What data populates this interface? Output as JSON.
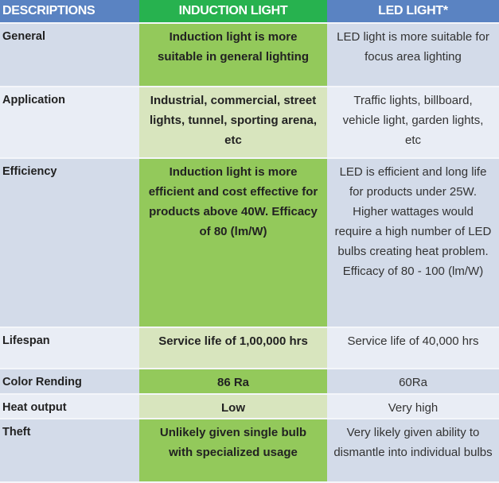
{
  "headers": {
    "descriptions": "DESCRIPTIONS",
    "induction": "INDUCTION LIGHT",
    "led": "LED LIGHT*"
  },
  "rows": [
    {
      "label": "General",
      "induction": "Induction light is more suitable in general lighting",
      "led": "LED light is more suitable for focus area lighting"
    },
    {
      "label": "Application",
      "induction": "Industrial, commercial, street lights, tunnel, sporting arena, etc",
      "led": "Traffic lights, billboard, vehicle light, garden lights, etc"
    },
    {
      "label": "Efficiency",
      "induction": "Induction light is more efficient and cost effective for products above 40W. Efficacy of 80 (lm/W)",
      "led": "LED is efficient and long life for products under 25W. Higher wattages would require  a high number of LED bulbs creating heat problem. Efficacy of 80 - 100 (lm/W)"
    },
    {
      "label": "Lifespan",
      "induction": "Service life of 1,00,000 hrs",
      "led": "Service life of 40,000 hrs"
    },
    {
      "label": "Color Rending",
      "induction": "86 Ra",
      "led": "60Ra"
    },
    {
      "label": "Heat output",
      "induction": "Low",
      "led": "Very high"
    },
    {
      "label": "Theft",
      "induction": "Unlikely given single bulb with specialized usage",
      "led": "Very likely given ability to dismantle into individual bulbs"
    }
  ]
}
